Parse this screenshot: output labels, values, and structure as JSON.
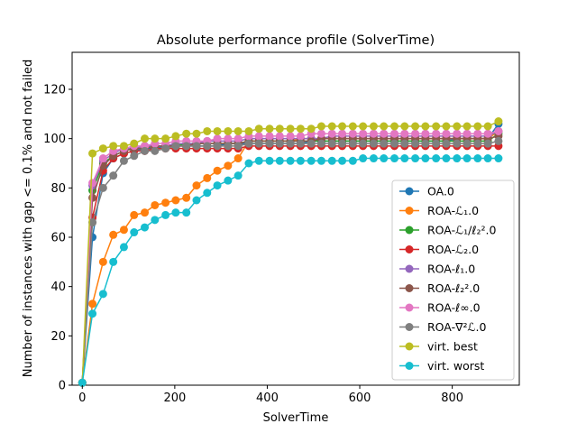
{
  "chart_data": {
    "type": "line",
    "title": "Absolute performance profile (SolverTime)",
    "xlabel": "SolverTime",
    "ylabel": "Number of instances with gap <= 0.1% and not failed",
    "xlim": [
      -22,
      945
    ],
    "ylim": [
      0,
      135
    ],
    "xticks": [
      0,
      200,
      400,
      600,
      800
    ],
    "yticks": [
      0,
      20,
      40,
      60,
      80,
      100,
      120
    ],
    "grid": false,
    "legend_position": "lower-right",
    "x": [
      0,
      22,
      45,
      67,
      90,
      112,
      135,
      157,
      180,
      202,
      225,
      247,
      270,
      292,
      315,
      337,
      360,
      382,
      405,
      427,
      450,
      472,
      495,
      517,
      540,
      562,
      585,
      607,
      630,
      652,
      675,
      697,
      720,
      742,
      765,
      787,
      810,
      832,
      855,
      877,
      900
    ],
    "series": [
      {
        "name": "OA.0",
        "color": "#1f77b4",
        "values": [
          1,
          60,
          86,
          92,
          94,
          95,
          96,
          96,
          97,
          97,
          97,
          97,
          97,
          97,
          98,
          98,
          98,
          98,
          98,
          98,
          98,
          98,
          99,
          99,
          99,
          99,
          99,
          99,
          99,
          99,
          99,
          99,
          99,
          99,
          99,
          99,
          100,
          100,
          100,
          100,
          106
        ]
      },
      {
        "name": "ROA-ℒ₁.0",
        "color": "#ff7f0e",
        "values": [
          1,
          33,
          50,
          61,
          63,
          69,
          70,
          73,
          74,
          75,
          76,
          81,
          84,
          87,
          89,
          92,
          99,
          99,
          99,
          99,
          99,
          100,
          100,
          100,
          100,
          100,
          100,
          100,
          100,
          100,
          100,
          100,
          100,
          100,
          100,
          100,
          100,
          100,
          100,
          100,
          103
        ]
      },
      {
        "name": "ROA-ℒ₁/ℓ₂².0",
        "color": "#2ca02c",
        "values": [
          1,
          79,
          90,
          93,
          95,
          96,
          96,
          97,
          97,
          97,
          98,
          98,
          98,
          98,
          98,
          98,
          99,
          99,
          99,
          99,
          99,
          99,
          99,
          99,
          99,
          99,
          99,
          99,
          99,
          99,
          99,
          99,
          99,
          99,
          99,
          99,
          99,
          99,
          99,
          99,
          102
        ]
      },
      {
        "name": "ROA-ℒ₂.0",
        "color": "#d62728",
        "values": [
          1,
          68,
          87,
          92,
          94,
          95,
          95,
          96,
          96,
          96,
          96,
          96,
          96,
          96,
          96,
          96,
          97,
          97,
          97,
          97,
          97,
          97,
          97,
          97,
          97,
          97,
          97,
          97,
          97,
          97,
          97,
          97,
          97,
          97,
          97,
          97,
          97,
          97,
          97,
          97,
          97
        ]
      },
      {
        "name": "ROA-ℓ₁.0",
        "color": "#9467bd",
        "values": [
          1,
          81,
          91,
          94,
          96,
          96,
          97,
          97,
          97,
          98,
          98,
          98,
          99,
          99,
          99,
          99,
          100,
          100,
          100,
          100,
          100,
          100,
          100,
          100,
          101,
          101,
          101,
          101,
          101,
          101,
          101,
          101,
          101,
          101,
          101,
          101,
          101,
          101,
          101,
          101,
          103
        ]
      },
      {
        "name": "ROA-ℓ₂².0",
        "color": "#8c564b",
        "values": [
          1,
          76,
          89,
          93,
          95,
          96,
          96,
          97,
          97,
          97,
          97,
          98,
          98,
          98,
          98,
          98,
          99,
          99,
          99,
          99,
          99,
          99,
          99,
          100,
          100,
          100,
          100,
          100,
          100,
          100,
          100,
          100,
          100,
          100,
          100,
          100,
          100,
          100,
          100,
          100,
          101
        ]
      },
      {
        "name": "ROA-ℓ∞.0",
        "color": "#e377c2",
        "values": [
          1,
          82,
          92,
          95,
          96,
          97,
          97,
          98,
          98,
          99,
          99,
          99,
          99,
          100,
          100,
          100,
          101,
          101,
          101,
          101,
          101,
          101,
          102,
          102,
          102,
          102,
          102,
          102,
          102,
          102,
          102,
          102,
          102,
          102,
          102,
          102,
          102,
          102,
          102,
          102,
          103
        ]
      },
      {
        "name": "ROA-∇²ℒ.0",
        "color": "#7f7f7f",
        "values": [
          1,
          66,
          80,
          85,
          91,
          93,
          95,
          95,
          96,
          97,
          97,
          97,
          97,
          97,
          97,
          97,
          98,
          98,
          98,
          98,
          98,
          98,
          98,
          98,
          98,
          98,
          98,
          98,
          98,
          98,
          98,
          98,
          98,
          98,
          98,
          98,
          98,
          98,
          98,
          98,
          99
        ]
      },
      {
        "name": "virt. best",
        "color": "#bcbd22",
        "values": [
          1,
          94,
          96,
          97,
          97,
          98,
          100,
          100,
          100,
          101,
          102,
          102,
          103,
          103,
          103,
          103,
          103,
          104,
          104,
          104,
          104,
          104,
          104,
          105,
          105,
          105,
          105,
          105,
          105,
          105,
          105,
          105,
          105,
          105,
          105,
          105,
          105,
          105,
          105,
          105,
          107
        ]
      },
      {
        "name": "virt. worst",
        "color": "#17becf",
        "values": [
          1,
          29,
          37,
          50,
          56,
          62,
          64,
          67,
          69,
          70,
          70,
          75,
          78,
          81,
          83,
          85,
          90,
          91,
          91,
          91,
          91,
          91,
          91,
          91,
          91,
          91,
          91,
          92,
          92,
          92,
          92,
          92,
          92,
          92,
          92,
          92,
          92,
          92,
          92,
          92,
          92
        ]
      }
    ]
  }
}
